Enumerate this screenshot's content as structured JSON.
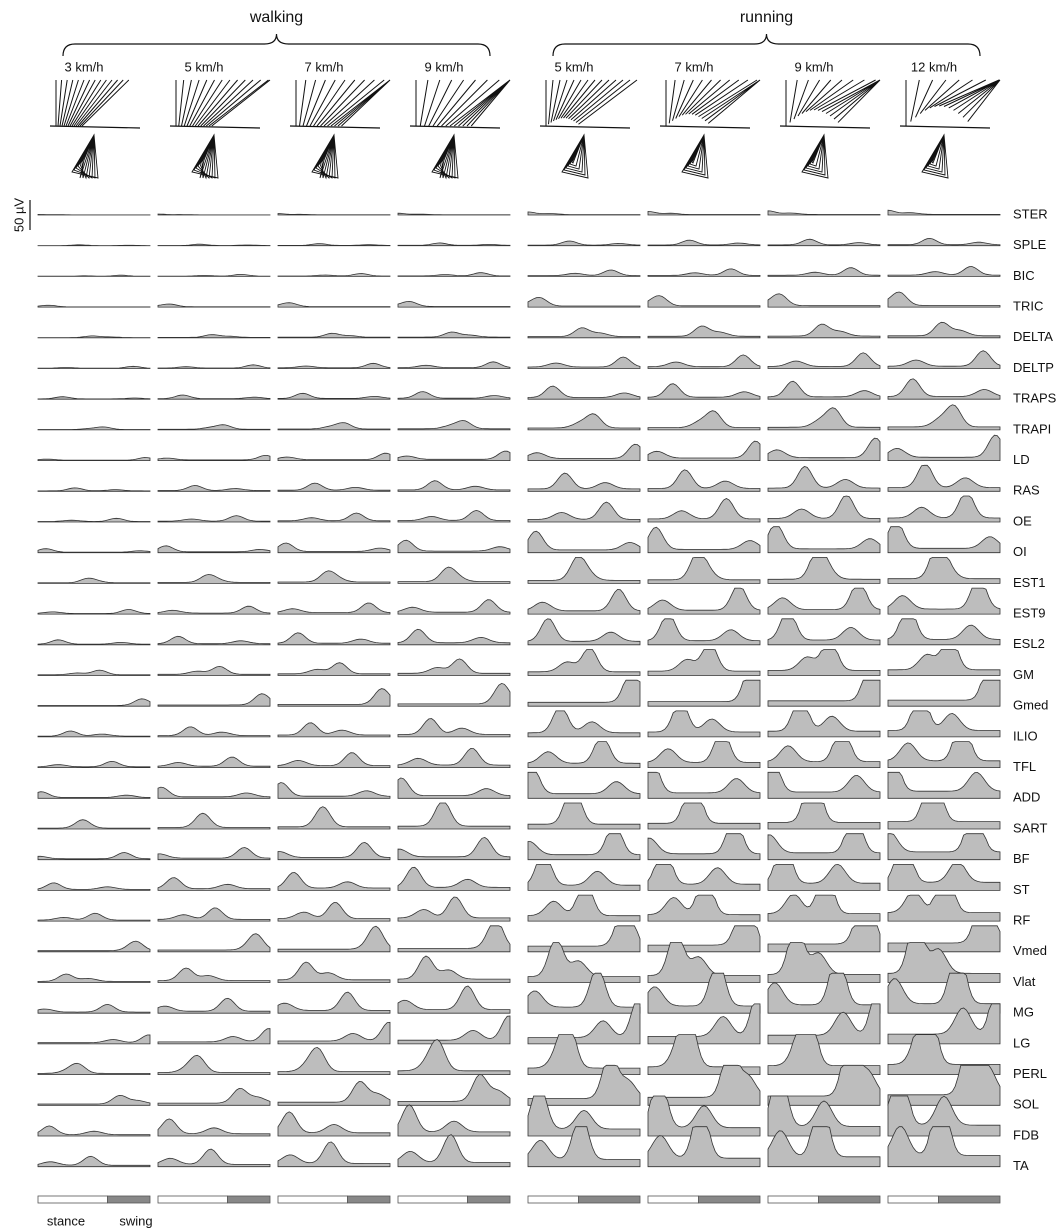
{
  "groups": [
    {
      "label": "walking",
      "speeds": [
        "3 km/h",
        "5 km/h",
        "7 km/h",
        "9 km/h"
      ]
    },
    {
      "label": "running",
      "speeds": [
        "5 km/h",
        "7 km/h",
        "9 km/h",
        "12 km/h"
      ]
    }
  ],
  "muscles": [
    "STER",
    "SPLE",
    "BIC",
    "TRIC",
    "DELTA",
    "DELTP",
    "TRAPS",
    "TRAPI",
    "LD",
    "RAS",
    "OE",
    "OI",
    "EST1",
    "EST9",
    "ESL2",
    "GM",
    "Gmed",
    "ILIO",
    "TFL",
    "ADD",
    "SART",
    "BF",
    "ST",
    "RF",
    "Vmed",
    "Vlat",
    "MG",
    "LG",
    "PERL",
    "SOL",
    "FDB",
    "TA"
  ],
  "scale_bar": "50 µV",
  "phases": [
    "stance",
    "swing"
  ]
}
